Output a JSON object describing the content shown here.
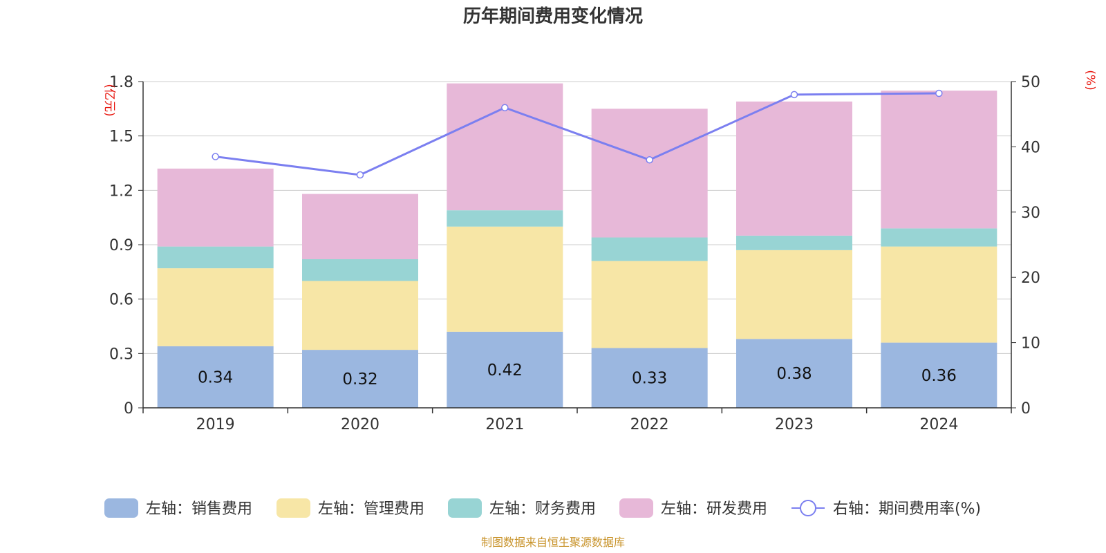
{
  "chart_data": {
    "type": "bar",
    "title": "历年期间费用变化情况",
    "categories": [
      "2019",
      "2020",
      "2021",
      "2022",
      "2023",
      "2024"
    ],
    "left_axis": {
      "unit_label": "(亿元)",
      "ylim": [
        0,
        1.8
      ],
      "ticks": [
        "0",
        "0.3",
        "0.6",
        "0.9",
        "1.2",
        "1.5",
        "1.8"
      ]
    },
    "right_axis": {
      "unit_label": "(%)",
      "ylim": [
        0,
        50
      ],
      "ticks": [
        "0",
        "10",
        "20",
        "30",
        "40",
        "50"
      ]
    },
    "series": [
      {
        "name": "左轴：销售费用",
        "type": "bar",
        "axis": "left",
        "color": "#9bb7e0",
        "values": [
          0.34,
          0.32,
          0.42,
          0.33,
          0.38,
          0.36
        ],
        "labels": [
          "0.34",
          "0.32",
          "0.42",
          "0.33",
          "0.38",
          "0.36"
        ]
      },
      {
        "name": "左轴：管理费用",
        "type": "bar",
        "axis": "left",
        "color": "#f7e6a6",
        "values": [
          0.43,
          0.38,
          0.58,
          0.48,
          0.49,
          0.53
        ]
      },
      {
        "name": "左轴：财务费用",
        "type": "bar",
        "axis": "left",
        "color": "#98d4d4",
        "values": [
          0.12,
          0.12,
          0.09,
          0.13,
          0.08,
          0.1
        ]
      },
      {
        "name": "左轴：研发费用",
        "type": "bar",
        "axis": "left",
        "color": "#e7b8d8",
        "values": [
          0.43,
          0.36,
          0.7,
          0.71,
          0.74,
          0.76
        ]
      },
      {
        "name": "右轴：期间费用率(%)",
        "type": "line",
        "axis": "right",
        "color": "#7b7ff0",
        "values": [
          38.5,
          35.7,
          46.0,
          38.0,
          48.0,
          48.2
        ]
      }
    ],
    "legend_position": "bottom",
    "source": "制图数据来自恒生聚源数据库"
  }
}
